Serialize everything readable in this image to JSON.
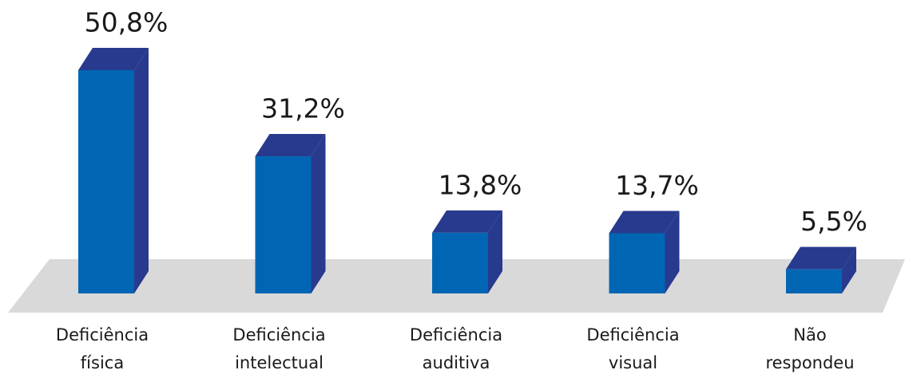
{
  "chart_data": {
    "type": "bar",
    "categories": [
      [
        "Deficiência",
        "física"
      ],
      [
        "Deficiência",
        "intelectual"
      ],
      [
        "Deficiência",
        "auditiva"
      ],
      [
        "Deficiência",
        "visual"
      ],
      [
        "Não",
        "respondeu"
      ]
    ],
    "values": [
      50.8,
      31.2,
      13.8,
      13.7,
      5.5
    ],
    "value_labels": [
      "50,8%",
      "31,2%",
      "13,8%",
      "13,7%",
      "5,5%"
    ],
    "color": "#0066b3",
    "side_color": "#283a8e",
    "floor_color": "#d9d9d9"
  }
}
